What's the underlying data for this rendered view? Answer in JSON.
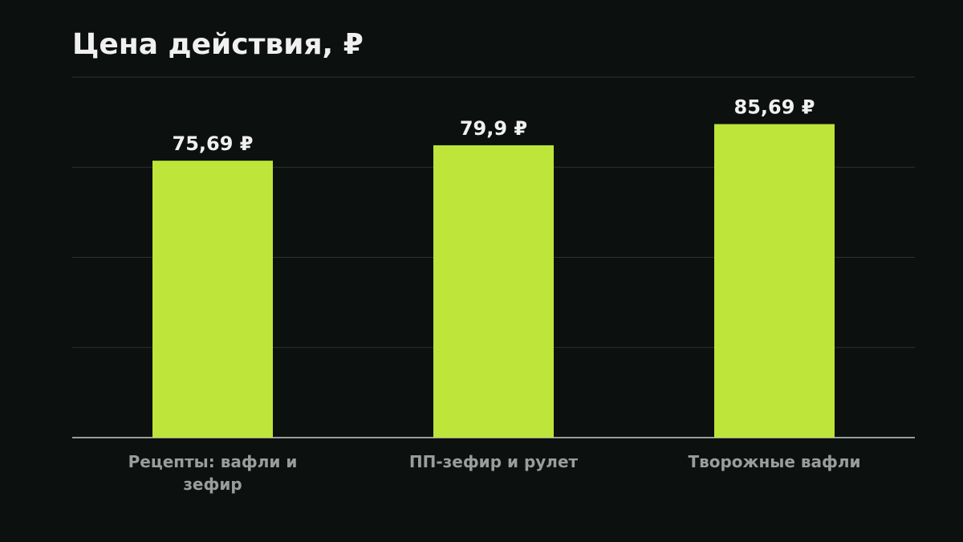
{
  "chart_data": {
    "type": "bar",
    "title": "Цена действия, ₽",
    "categories": [
      "Рецепты: вафли и зефир",
      "ПП-зефир и рулет",
      "Творожные вафли"
    ],
    "values": [
      75.69,
      79.9,
      85.69
    ],
    "value_labels": [
      "75,69 ₽",
      "79,9 ₽",
      "85,69 ₽"
    ],
    "color": "#bde53a",
    "ylim": [
      0,
      98.54
    ],
    "yticks": [
      0,
      24.64,
      49.27,
      73.91,
      98.54
    ],
    "grid": true
  }
}
